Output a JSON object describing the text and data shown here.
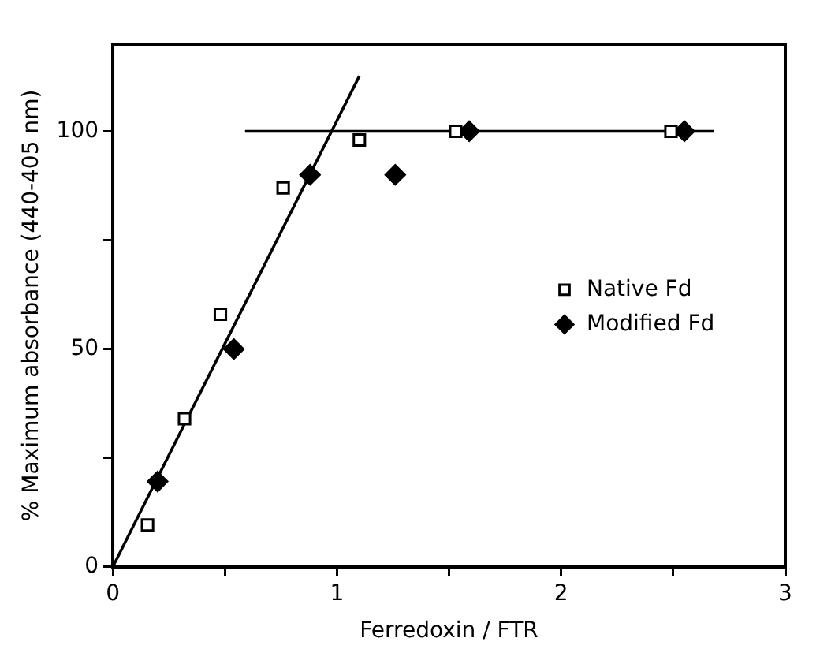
{
  "chart_data": {
    "type": "scatter",
    "xlabel": "Ferredoxin / FTR",
    "ylabel": "% Maximum absorbance (440-405 nm)",
    "xlim": [
      0,
      3
    ],
    "xticks": [
      0,
      {
        "value": 0.5,
        "label": null
      },
      1,
      {
        "value": 1.5,
        "label": null
      },
      2,
      {
        "value": 2.5,
        "label": null
      },
      3
    ],
    "ylim": [
      0,
      120
    ],
    "yticks": [
      0,
      {
        "value": 25,
        "label": null
      },
      50,
      {
        "value": 75,
        "label": null
      },
      100
    ],
    "grid": false,
    "legend": "right",
    "series": [
      {
        "name": "Native Fd",
        "marker": "square",
        "color": "#000000",
        "x": [
          0.155,
          0.32,
          0.48,
          0.76,
          1.1,
          1.53,
          2.49
        ],
        "values": [
          9.6,
          34,
          58,
          87,
          98,
          100,
          100
        ]
      },
      {
        "name": "Modified Fd",
        "marker": "diamond",
        "color": "#000000",
        "x": [
          0.2,
          0.54,
          0.88,
          1.26,
          1.59,
          2.55
        ],
        "values": [
          19.6,
          50,
          90,
          90,
          100,
          100
        ]
      },
      {
        "type": "line",
        "marker": "none",
        "color": "#000000",
        "x": [
          0,
          1.1
        ],
        "values": [
          0,
          112.7
        ]
      },
      {
        "type": "line",
        "marker": "none",
        "color": "#000000",
        "x": [
          0.59,
          2.68
        ],
        "values": [
          100,
          100
        ]
      }
    ]
  }
}
